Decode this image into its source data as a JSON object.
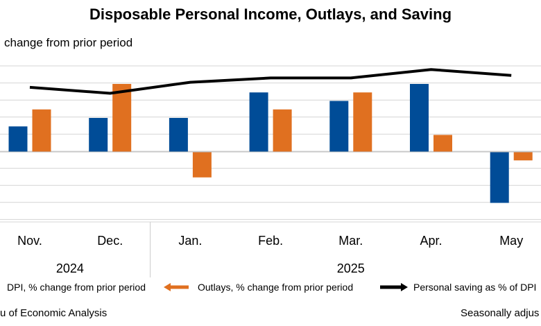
{
  "chart_data": {
    "type": "bar",
    "title": "Disposable Personal Income, Outlays, and Saving",
    "subtitle": "change from prior period",
    "categories": [
      "Nov.",
      "Dec.",
      "Jan.",
      "Feb.",
      "Mar.",
      "Apr.",
      "May"
    ],
    "year_groups": [
      {
        "label": "2024",
        "categories": [
          "Nov.",
          "Dec."
        ]
      },
      {
        "label": "2025",
        "categories": [
          "Jan.",
          "Feb.",
          "Mar.",
          "Apr.",
          "May"
        ]
      }
    ],
    "series": [
      {
        "name": "DPI, % change from prior period",
        "type": "bar",
        "color": "#004C97",
        "values": [
          0.3,
          0.4,
          0.4,
          0.7,
          0.6,
          0.8,
          -0.6
        ]
      },
      {
        "name": "Outlays, % change from prior period",
        "type": "bar",
        "color": "#E07020",
        "values": [
          0.5,
          0.8,
          -0.3,
          0.5,
          0.7,
          0.2,
          -0.1
        ]
      },
      {
        "name": "Personal saving as % of DPI",
        "type": "line",
        "color": "#000000",
        "values": [
          0.76,
          0.69,
          0.82,
          0.87,
          0.87,
          0.97,
          0.9
        ]
      }
    ],
    "ylim": [
      -0.8,
      1.0
    ],
    "grid": true,
    "legend_position": "bottom"
  },
  "footer": {
    "source": "u of Economic Analysis",
    "note": "Seasonally adjus"
  }
}
